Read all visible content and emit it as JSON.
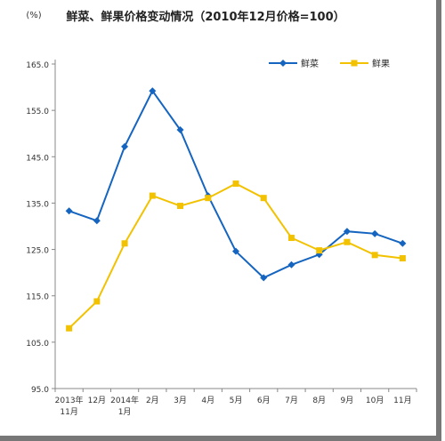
{
  "chart_data": {
    "type": "line",
    "title": "鲜菜、鲜果价格变动情况（2010年12月价格=100）",
    "ylabel": "(%)",
    "ylim": [
      95.0,
      165.0
    ],
    "yticks": [
      "95.0",
      "105.0",
      "115.0",
      "125.0",
      "135.0",
      "145.0",
      "155.0",
      "165.0"
    ],
    "categories": [
      [
        "2013年",
        "11月"
      ],
      [
        "12月"
      ],
      [
        "2014年",
        "1月"
      ],
      [
        "2月"
      ],
      [
        "3月"
      ],
      [
        "4月"
      ],
      [
        "5月"
      ],
      [
        "6月"
      ],
      [
        "7月"
      ],
      [
        "8月"
      ],
      [
        "9月"
      ],
      [
        "10月"
      ],
      [
        "11月"
      ]
    ],
    "series": [
      {
        "name": "鲜菜",
        "color": "#1565c0",
        "marker": "diamond",
        "values": [
          133.3,
          131.2,
          147.2,
          159.2,
          150.8,
          136.6,
          124.6,
          118.9,
          121.7,
          123.9,
          128.9,
          128.4,
          126.3
        ]
      },
      {
        "name": "鲜果",
        "color": "#f2c200",
        "marker": "square",
        "values": [
          108.0,
          113.8,
          126.3,
          136.6,
          134.4,
          136.1,
          139.2,
          136.1,
          127.5,
          124.8,
          126.6,
          123.8,
          123.1
        ]
      }
    ],
    "legend_position": "top-right",
    "grid": false
  }
}
